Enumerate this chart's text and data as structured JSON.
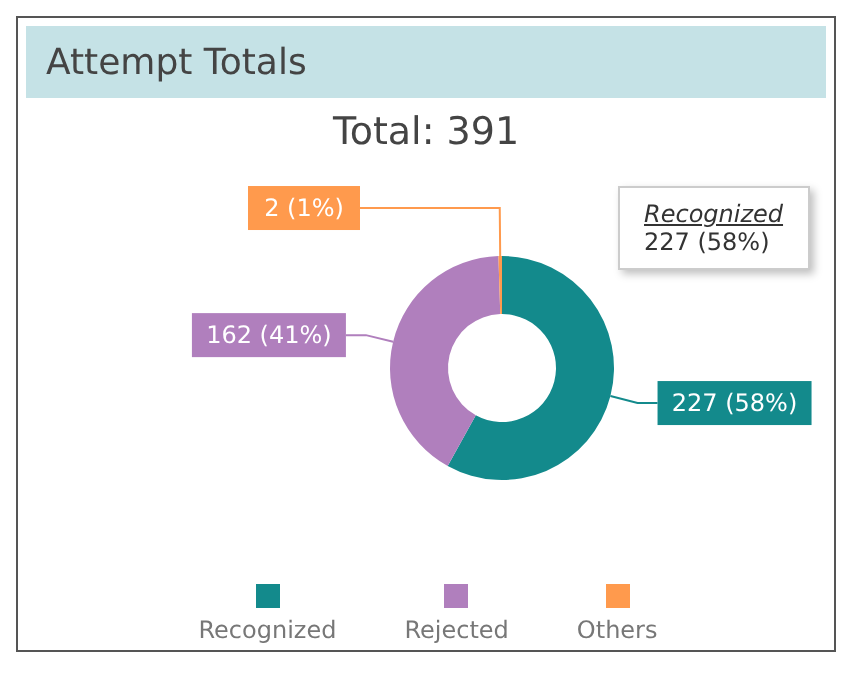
{
  "chart_data": {
    "type": "donut",
    "title": "Attempt Totals",
    "subtitle": "Total: 391",
    "categories": [
      "Recognized",
      "Rejected",
      "Others"
    ],
    "values": [
      227,
      162,
      2
    ],
    "colors": [
      "#138a8c",
      "#b07fbd",
      "#ff9a4d"
    ],
    "value_labels": [
      "227 (58%)",
      "162 (41%)",
      "2 (1%)"
    ],
    "annotations": [
      "Recognized",
      "227 (58%)"
    ],
    "legend": "bottom"
  }
}
